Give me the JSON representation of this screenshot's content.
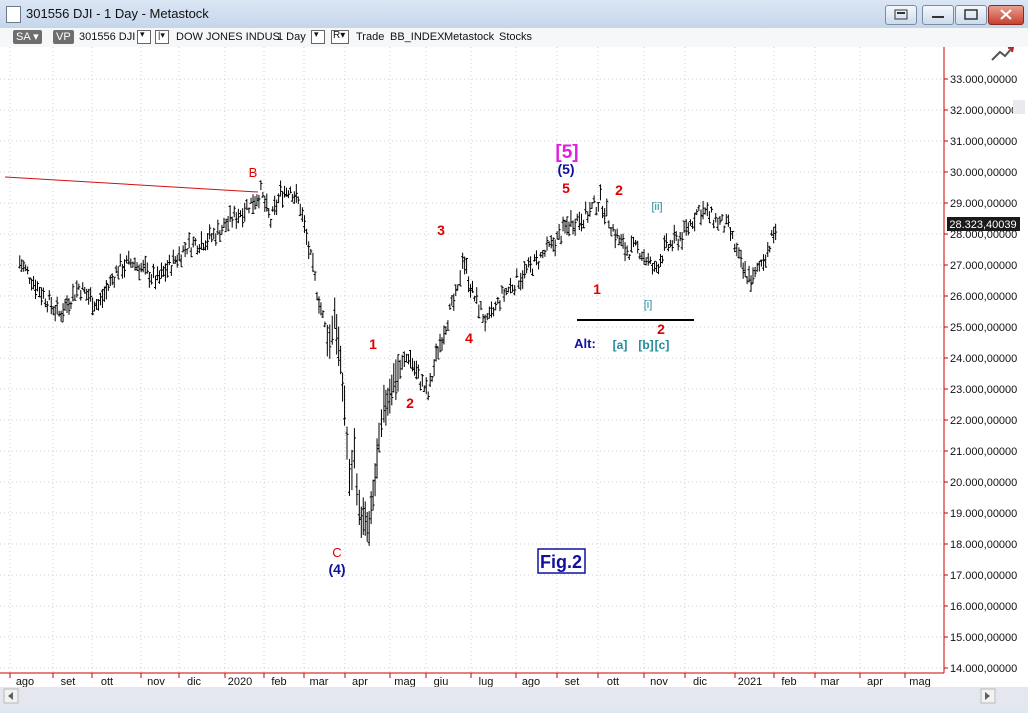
{
  "window": {
    "title": "301556 DJI - 1 Day - Metastock"
  },
  "toolbar": {
    "sa_label": "SA",
    "vp_label": "VP",
    "symbol": "301556 DJI",
    "security_name": "DOW JONES INDUS",
    "periodicity": "1 Day",
    "r_label": "R",
    "trade_label": "Trade",
    "bb_label": "BB_INDEX",
    "metastock_label": "Metastock",
    "stocks_label": "Stocks"
  },
  "colors": {
    "wave_red": "#e00000",
    "wave_blue": "#1010a0",
    "wave_magenta": "#e020e0",
    "wave_teal": "#208a9a",
    "trendline": "#d01010",
    "grid": "#c8d0dc",
    "candles": "#000000",
    "axis": "#cc0000"
  },
  "chart_data": {
    "type": "ohlc",
    "price_scale": [
      "33.000,00000",
      "32.000,00000",
      "31.000,00000",
      "30.000,00000",
      "29.000,00000",
      "28.000,00000",
      "27.000,00000",
      "26.000,00000",
      "25.000,00000",
      "24.000,00000",
      "23.000,00000",
      "22.000,00000",
      "21.000,00000",
      "20.000,00000",
      "19.000,00000",
      "18.000,00000",
      "17.000,00000",
      "16.000,00000",
      "15.000,00000",
      "14.000,00000"
    ],
    "ylim": [
      14000,
      33000
    ],
    "last_price": "28.323,40039",
    "x_labels": [
      "ago",
      "set",
      "ott",
      "nov",
      "dic",
      "2020",
      "feb",
      "mar",
      "apr",
      "mag",
      "giu",
      "lug",
      "ago",
      "set",
      "ott",
      "nov",
      "dic",
      "2021",
      "feb",
      "mar",
      "apr",
      "mag"
    ],
    "series_path": [
      [
        2019.58,
        27100
      ],
      [
        2019.62,
        26200
      ],
      [
        2019.66,
        25400
      ],
      [
        2019.7,
        26300
      ],
      [
        2019.74,
        25700
      ],
      [
        2019.78,
        26900
      ],
      [
        2019.81,
        27100
      ],
      [
        2019.86,
        26500
      ],
      [
        2019.88,
        26900
      ],
      [
        2019.92,
        27600
      ],
      [
        2019.97,
        27900
      ],
      [
        2020.02,
        28600
      ],
      [
        2020.05,
        29000
      ],
      [
        2020.07,
        29350
      ],
      [
        2020.09,
        28400
      ],
      [
        2020.11,
        29300
      ],
      [
        2020.13,
        29500
      ],
      [
        2020.15,
        28900
      ],
      [
        2020.18,
        26500
      ],
      [
        2020.2,
        25000
      ],
      [
        2020.21,
        24500
      ],
      [
        2020.22,
        25500
      ],
      [
        2020.24,
        22500
      ],
      [
        2020.25,
        20000
      ],
      [
        2020.26,
        21000
      ],
      [
        2020.27,
        19000
      ],
      [
        2020.29,
        18400
      ],
      [
        2020.31,
        21200
      ],
      [
        2020.32,
        22300
      ],
      [
        2020.34,
        23300
      ],
      [
        2020.37,
        24100
      ],
      [
        2020.39,
        23400
      ],
      [
        2020.41,
        22800
      ],
      [
        2020.43,
        24300
      ],
      [
        2020.45,
        25300
      ],
      [
        2020.47,
        26100
      ],
      [
        2020.48,
        27300
      ],
      [
        2020.5,
        26100
      ],
      [
        2020.53,
        25100
      ],
      [
        2020.56,
        26000
      ],
      [
        2020.59,
        26500
      ],
      [
        2020.63,
        27100
      ],
      [
        2020.66,
        27600
      ],
      [
        2020.7,
        28400
      ],
      [
        2020.73,
        28600
      ],
      [
        2020.76,
        29100
      ],
      [
        2020.79,
        28000
      ],
      [
        2020.81,
        27500
      ],
      [
        2020.84,
        27500
      ],
      [
        2020.87,
        26800
      ],
      [
        2020.89,
        27500
      ],
      [
        2020.93,
        28000
      ],
      [
        2020.96,
        28800
      ],
      [
        2020.99,
        28500
      ],
      [
        2021.02,
        28200
      ],
      [
        2021.05,
        26800
      ],
      [
        2021.07,
        26500
      ],
      [
        2021.1,
        27500
      ],
      [
        2021.12,
        28300
      ]
    ]
  },
  "labels": {
    "b": "B",
    "c": "C",
    "w4": "(4)",
    "w5": "(5)",
    "w5big": "[5]",
    "r1": "1",
    "r2": "2",
    "r3": "3",
    "r4": "4",
    "r5": "5",
    "oct1": "1",
    "oct2": "2",
    "nov2": "2",
    "ii": "[ii]",
    "i": "[i]",
    "alt": "Alt:",
    "a": "[a]",
    "bb": "[b]",
    "cc": "[c]",
    "fig": "Fig.2"
  }
}
